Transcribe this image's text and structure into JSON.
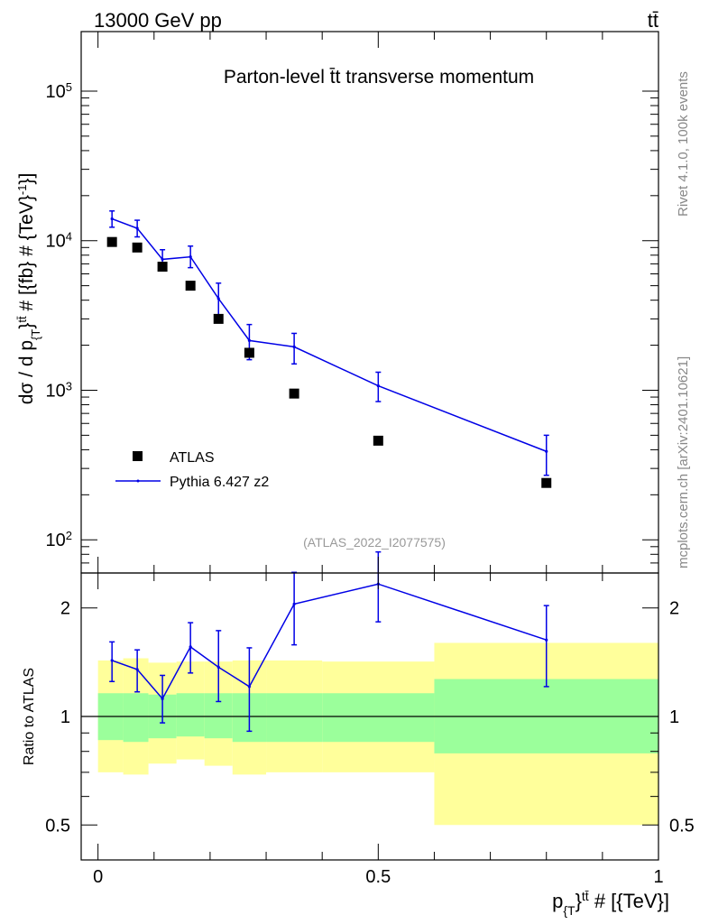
{
  "header": {
    "energy_label": "13000 GeV pp",
    "process_label": "tt̄"
  },
  "side_labels": {
    "rivet": "Rivet 4.1.0,  100k events",
    "mcplots": "mcplots.cern.ch [arXiv:2401.10621]"
  },
  "chart_data": [
    {
      "type": "line",
      "title": "Parton-level t̄t transverse momentum",
      "watermark": "(ATLAS_2022_I2077575)",
      "xlabel": "p_{T}^{tt̄} # [{TeV}]",
      "ylabel": "dσ / d p_{T}^{tt̄} # [{fb} # {TeV}^{-1}]",
      "yscale": "log",
      "xlim": [
        -0.03,
        1.0
      ],
      "ylim": [
        60,
        250000
      ],
      "yticks": [
        100,
        1000,
        10000,
        100000
      ],
      "ytick_labels": [
        {
          "base": "10",
          "exp": "2"
        },
        {
          "base": "10",
          "exp": "3"
        },
        {
          "base": "10",
          "exp": "4"
        },
        {
          "base": "10",
          "exp": "5"
        }
      ],
      "legend": {
        "position": "lower-left",
        "entries": [
          "ATLAS",
          "Pythia 6.427 z2"
        ]
      },
      "series": [
        {
          "name": "ATLAS",
          "style": "markers",
          "color": "#000000",
          "x": [
            0.025,
            0.07,
            0.115,
            0.165,
            0.215,
            0.27,
            0.35,
            0.5,
            0.8
          ],
          "y": [
            9800,
            9000,
            6700,
            5000,
            3000,
            1780,
            950,
            460,
            240
          ]
        },
        {
          "name": "Pythia 6.427 z2",
          "style": "line",
          "color": "#0000e6",
          "x": [
            0.025,
            0.07,
            0.115,
            0.165,
            0.215,
            0.27,
            0.35,
            0.5,
            0.8
          ],
          "y": [
            14000,
            12100,
            7500,
            7800,
            4100,
            2150,
            1950,
            1070,
            390
          ],
          "y_err_low": [
            1700,
            1500,
            1100,
            1200,
            1150,
            550,
            450,
            230,
            120
          ],
          "y_err_high": [
            1800,
            1600,
            1200,
            1400,
            1100,
            600,
            450,
            250,
            110
          ]
        }
      ]
    },
    {
      "type": "line",
      "ylabel": "Ratio to ATLAS",
      "xlabel": "p_{T}^{tt̄} # [{TeV}]",
      "yscale": "log",
      "xlim": [
        -0.03,
        1.0
      ],
      "ylim": [
        0.4,
        2.5
      ],
      "yticks": [
        0.5,
        1,
        2
      ],
      "ytick_labels": [
        "0.5",
        "1",
        "2"
      ],
      "xticks": [
        0,
        0.5,
        1
      ],
      "xtick_labels": [
        "0",
        "0.5",
        "1"
      ],
      "reference_line": 1,
      "uncertainty_bands": [
        {
          "x0": 0.0,
          "x1": 0.045,
          "inner": [
            0.86,
            1.16
          ],
          "outer": [
            0.7,
            1.43
          ]
        },
        {
          "x0": 0.045,
          "x1": 0.09,
          "inner": [
            0.85,
            1.16
          ],
          "outer": [
            0.69,
            1.45
          ]
        },
        {
          "x0": 0.09,
          "x1": 0.14,
          "inner": [
            0.87,
            1.15
          ],
          "outer": [
            0.74,
            1.41
          ]
        },
        {
          "x0": 0.14,
          "x1": 0.19,
          "inner": [
            0.88,
            1.16
          ],
          "outer": [
            0.76,
            1.42
          ]
        },
        {
          "x0": 0.19,
          "x1": 0.24,
          "inner": [
            0.87,
            1.16
          ],
          "outer": [
            0.73,
            1.42
          ]
        },
        {
          "x0": 0.24,
          "x1": 0.3,
          "inner": [
            0.85,
            1.16
          ],
          "outer": [
            0.69,
            1.43
          ]
        },
        {
          "x0": 0.3,
          "x1": 0.4,
          "inner": [
            0.85,
            1.16
          ],
          "outer": [
            0.7,
            1.43
          ]
        },
        {
          "x0": 0.4,
          "x1": 0.6,
          "inner": [
            0.85,
            1.16
          ],
          "outer": [
            0.7,
            1.42
          ]
        },
        {
          "x0": 0.6,
          "x1": 1.0,
          "inner": [
            0.79,
            1.27
          ],
          "outer": [
            0.5,
            1.6
          ]
        }
      ],
      "band_colors": {
        "inner": "#9bff9b",
        "outer": "#ffff9b"
      },
      "series": [
        {
          "name": "Pythia 6.427 z2",
          "color": "#0000e6",
          "x": [
            0.025,
            0.07,
            0.115,
            0.165,
            0.215,
            0.27,
            0.35,
            0.5,
            0.8
          ],
          "y": [
            1.43,
            1.35,
            1.12,
            1.56,
            1.37,
            1.21,
            2.05,
            2.33,
            1.63
          ],
          "y_err_low": [
            0.18,
            0.18,
            0.16,
            0.24,
            0.27,
            0.3,
            0.47,
            0.5,
            0.42
          ],
          "y_err_high": [
            0.18,
            0.18,
            0.18,
            0.26,
            0.36,
            0.34,
            0.46,
            0.53,
            0.4
          ]
        }
      ]
    }
  ]
}
